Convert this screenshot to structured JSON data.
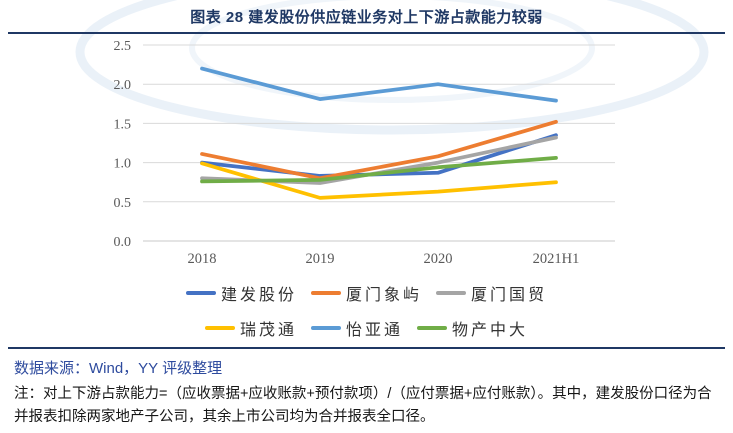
{
  "header": {
    "title": "图表 28 建发股份供应链业务对上下游占款能力较弱"
  },
  "chart_data": {
    "type": "line",
    "categories": [
      "2018",
      "2019",
      "2020",
      "2021H1"
    ],
    "series": [
      {
        "name": "建发股份",
        "color": "#4472C4",
        "values": [
          1.0,
          0.83,
          0.87,
          1.35
        ]
      },
      {
        "name": "厦门象屿",
        "color": "#ED7D31",
        "values": [
          1.11,
          0.8,
          1.08,
          1.52
        ]
      },
      {
        "name": "厦门国贸",
        "color": "#A5A5A5",
        "values": [
          0.8,
          0.74,
          1.0,
          1.32
        ]
      },
      {
        "name": "瑞茂通",
        "color": "#FFC000",
        "values": [
          0.99,
          0.55,
          0.63,
          0.75
        ]
      },
      {
        "name": "怡亚通",
        "color": "#5B9BD5",
        "values": [
          2.2,
          1.81,
          2.0,
          1.79
        ]
      },
      {
        "name": "物产中大",
        "color": "#70AD47",
        "values": [
          0.76,
          0.78,
          0.94,
          1.06
        ]
      }
    ],
    "title": "",
    "xlabel": "",
    "ylabel": "",
    "ylim": [
      0,
      2.5
    ],
    "ytick_step": 0.5,
    "yticks": [
      "0.0",
      "0.5",
      "1.0",
      "1.5",
      "2.0",
      "2.5"
    ],
    "grid": "horizontal",
    "legend_position": "bottom",
    "legend_rows": [
      [
        0,
        1,
        2
      ],
      [
        3,
        4,
        5
      ]
    ]
  },
  "footer": {
    "source": "数据来源：Wind，YY 评级整理",
    "note": "注：对上下游占款能力=（应收票据+应收账款+预付款项）/（应付票据+应付账款）。其中，建发股份口径为合并报表扣除两家地产子公司，其余上市公司均为合并报表全口径。"
  },
  "colors": {
    "title_navy": "#1F3864",
    "divider_navy": "#1F3864",
    "source_blue": "#2E4B9E",
    "gridline": "#D9D9D9",
    "baseline": "#C9C9C9",
    "tick_text": "#595959",
    "watermark": "#C3D6EC"
  }
}
